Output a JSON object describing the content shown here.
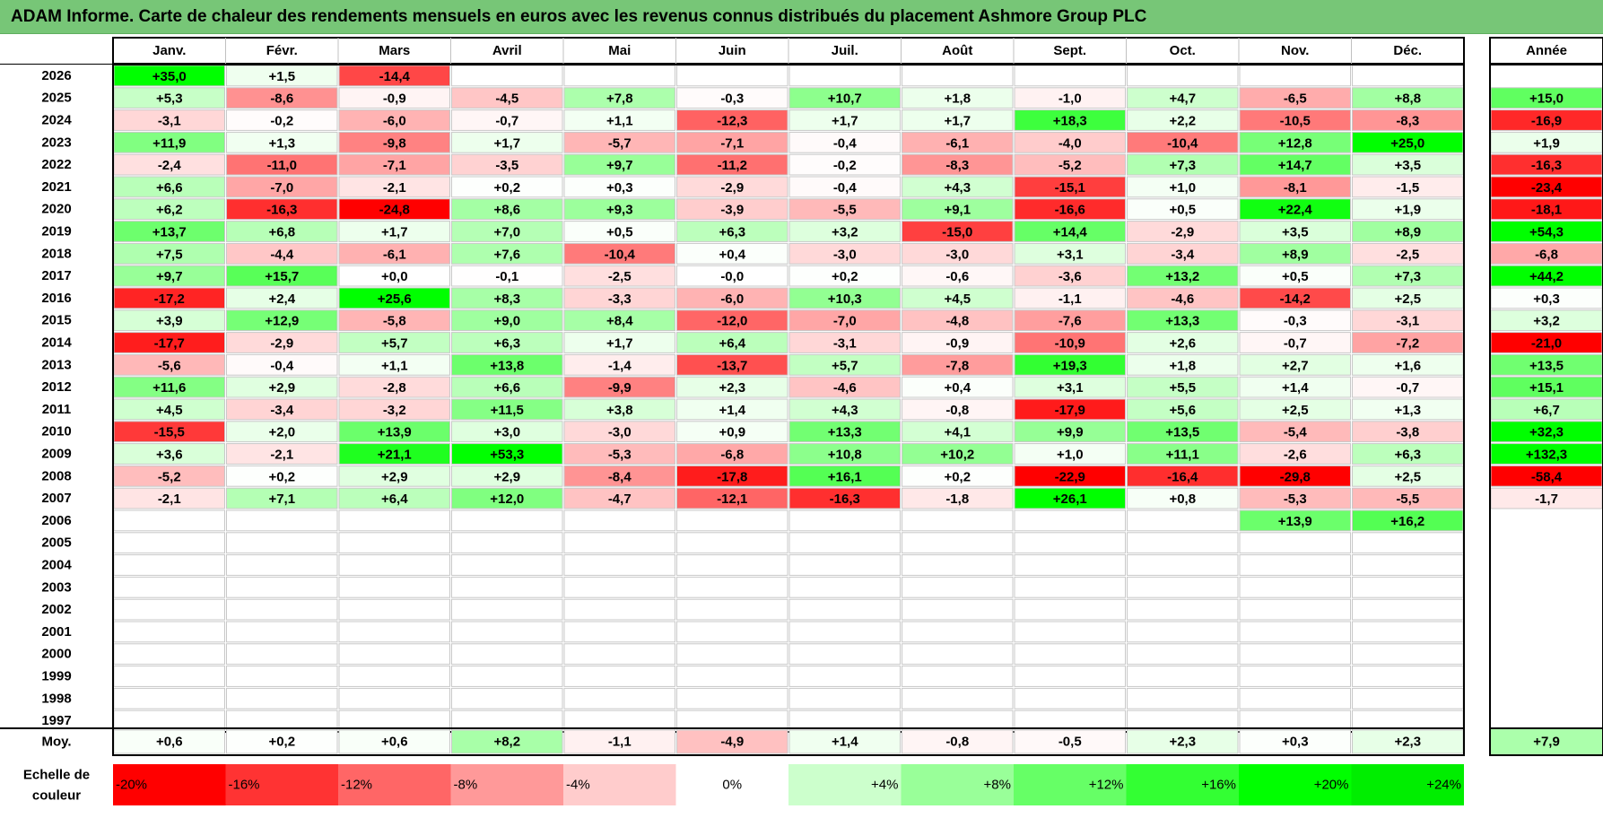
{
  "title": "ADAM Informe. Carte de chaleur des rendements mensuels en euros avec les revenus connus distribués du placement Ashmore Group PLC",
  "chart_data": {
    "type": "heatmap",
    "title": "ADAM Informe. Carte de chaleur des rendements mensuels en euros avec les revenus connus distribués du placement Ashmore Group PLC",
    "months": [
      "Janv.",
      "Févr.",
      "Mars",
      "Avril",
      "Mai",
      "Juin",
      "Juil.",
      "Août",
      "Sept.",
      "Oct.",
      "Nov.",
      "Déc."
    ],
    "year_header": "Année",
    "rows": [
      {
        "year": "2026",
        "values": [
          "+35,0",
          "+1,5",
          "-14,4",
          "",
          "",
          "",
          "",
          "",
          "",
          "",
          "",
          ""
        ],
        "annual": ""
      },
      {
        "year": "2025",
        "values": [
          "+5,3",
          "-8,6",
          "-0,9",
          "-4,5",
          "+7,8",
          "-0,3",
          "+10,7",
          "+1,8",
          "-1,0",
          "+4,7",
          "-6,5",
          "+8,8"
        ],
        "annual": "+15,0"
      },
      {
        "year": "2024",
        "values": [
          "-3,1",
          "-0,2",
          "-6,0",
          "-0,7",
          "+1,1",
          "-12,3",
          "+1,7",
          "+1,7",
          "+18,3",
          "+2,2",
          "-10,5",
          "-8,3"
        ],
        "annual": "-16,9"
      },
      {
        "year": "2023",
        "values": [
          "+11,9",
          "+1,3",
          "-9,8",
          "+1,7",
          "-5,7",
          "-7,1",
          "-0,4",
          "-6,1",
          "-4,0",
          "-10,4",
          "+12,8",
          "+25,0"
        ],
        "annual": "+1,9"
      },
      {
        "year": "2022",
        "values": [
          "-2,4",
          "-11,0",
          "-7,1",
          "-3,5",
          "+9,7",
          "-11,2",
          "-0,2",
          "-8,3",
          "-5,2",
          "+7,3",
          "+14,7",
          "+3,5"
        ],
        "annual": "-16,3"
      },
      {
        "year": "2021",
        "values": [
          "+6,6",
          "-7,0",
          "-2,1",
          "+0,2",
          "+0,3",
          "-2,9",
          "-0,4",
          "+4,3",
          "-15,1",
          "+1,0",
          "-8,1",
          "-1,5"
        ],
        "annual": "-23,4"
      },
      {
        "year": "2020",
        "values": [
          "+6,2",
          "-16,3",
          "-24,8",
          "+8,6",
          "+9,3",
          "-3,9",
          "-5,5",
          "+9,1",
          "-16,6",
          "+0,5",
          "+22,4",
          "+1,9"
        ],
        "annual": "-18,1"
      },
      {
        "year": "2019",
        "values": [
          "+13,7",
          "+6,8",
          "+1,7",
          "+7,0",
          "+0,5",
          "+6,3",
          "+3,2",
          "-15,0",
          "+14,4",
          "-2,9",
          "+3,5",
          "+8,9"
        ],
        "annual": "+54,3"
      },
      {
        "year": "2018",
        "values": [
          "+7,5",
          "-4,4",
          "-6,1",
          "+7,6",
          "-10,4",
          "+0,4",
          "-3,0",
          "-3,0",
          "+3,1",
          "-3,4",
          "+8,9",
          "-2,5"
        ],
        "annual": "-6,8"
      },
      {
        "year": "2017",
        "values": [
          "+9,7",
          "+15,7",
          "+0,0",
          "-0,1",
          "-2,5",
          "-0,0",
          "+0,2",
          "-0,6",
          "-3,6",
          "+13,2",
          "+0,5",
          "+7,3"
        ],
        "annual": "+44,2"
      },
      {
        "year": "2016",
        "values": [
          "-17,2",
          "+2,4",
          "+25,6",
          "+8,3",
          "-3,3",
          "-6,0",
          "+10,3",
          "+4,5",
          "-1,1",
          "-4,6",
          "-14,2",
          "+2,5"
        ],
        "annual": "+0,3"
      },
      {
        "year": "2015",
        "values": [
          "+3,9",
          "+12,9",
          "-5,8",
          "+9,0",
          "+8,4",
          "-12,0",
          "-7,0",
          "-4,8",
          "-7,6",
          "+13,3",
          "-0,3",
          "-3,1"
        ],
        "annual": "+3,2"
      },
      {
        "year": "2014",
        "values": [
          "-17,7",
          "-2,9",
          "+5,7",
          "+6,3",
          "+1,7",
          "+6,4",
          "-3,1",
          "-0,9",
          "-10,9",
          "+2,6",
          "-0,7",
          "-7,2"
        ],
        "annual": "-21,0"
      },
      {
        "year": "2013",
        "values": [
          "-5,6",
          "-0,4",
          "+1,1",
          "+13,8",
          "-1,4",
          "-13,7",
          "+5,7",
          "-7,8",
          "+19,3",
          "+1,8",
          "+2,7",
          "+1,6"
        ],
        "annual": "+13,5"
      },
      {
        "year": "2012",
        "values": [
          "+11,6",
          "+2,9",
          "-2,8",
          "+6,6",
          "-9,9",
          "+2,3",
          "-4,6",
          "+0,4",
          "+3,1",
          "+5,5",
          "+1,4",
          "-0,7"
        ],
        "annual": "+15,1"
      },
      {
        "year": "2011",
        "values": [
          "+4,5",
          "-3,4",
          "-3,2",
          "+11,5",
          "+3,8",
          "+1,4",
          "+4,3",
          "-0,8",
          "-17,9",
          "+5,6",
          "+2,5",
          "+1,3"
        ],
        "annual": "+6,7"
      },
      {
        "year": "2010",
        "values": [
          "-15,5",
          "+2,0",
          "+13,9",
          "+3,0",
          "-3,0",
          "+0,9",
          "+13,3",
          "+4,1",
          "+9,9",
          "+13,5",
          "-5,4",
          "-3,8"
        ],
        "annual": "+32,3"
      },
      {
        "year": "2009",
        "values": [
          "+3,6",
          "-2,1",
          "+21,1",
          "+53,3",
          "-5,3",
          "-6,8",
          "+10,8",
          "+10,2",
          "+1,0",
          "+11,1",
          "-2,6",
          "+6,3"
        ],
        "annual": "+132,3"
      },
      {
        "year": "2008",
        "values": [
          "-5,2",
          "+0,2",
          "+2,9",
          "+2,9",
          "-8,4",
          "-17,8",
          "+16,1",
          "+0,2",
          "-22,9",
          "-16,4",
          "-29,8",
          "+2,5"
        ],
        "annual": "-58,4"
      },
      {
        "year": "2007",
        "values": [
          "-2,1",
          "+7,1",
          "+6,4",
          "+12,0",
          "-4,7",
          "-12,1",
          "-16,3",
          "-1,8",
          "+26,1",
          "+0,8",
          "-5,3",
          "-5,5"
        ],
        "annual": "-1,7"
      },
      {
        "year": "2006",
        "values": [
          "",
          "",
          "",
          "",
          "",
          "",
          "",
          "",
          "",
          "",
          "+13,9",
          "+16,2"
        ],
        "annual": ""
      },
      {
        "year": "2005",
        "values": [
          "",
          "",
          "",
          "",
          "",
          "",
          "",
          "",
          "",
          "",
          "",
          ""
        ],
        "annual": ""
      },
      {
        "year": "2004",
        "values": [
          "",
          "",
          "",
          "",
          "",
          "",
          "",
          "",
          "",
          "",
          "",
          ""
        ],
        "annual": ""
      },
      {
        "year": "2003",
        "values": [
          "",
          "",
          "",
          "",
          "",
          "",
          "",
          "",
          "",
          "",
          "",
          ""
        ],
        "annual": ""
      },
      {
        "year": "2002",
        "values": [
          "",
          "",
          "",
          "",
          "",
          "",
          "",
          "",
          "",
          "",
          "",
          ""
        ],
        "annual": ""
      },
      {
        "year": "2001",
        "values": [
          "",
          "",
          "",
          "",
          "",
          "",
          "",
          "",
          "",
          "",
          "",
          ""
        ],
        "annual": ""
      },
      {
        "year": "2000",
        "values": [
          "",
          "",
          "",
          "",
          "",
          "",
          "",
          "",
          "",
          "",
          "",
          ""
        ],
        "annual": ""
      },
      {
        "year": "1999",
        "values": [
          "",
          "",
          "",
          "",
          "",
          "",
          "",
          "",
          "",
          "",
          "",
          ""
        ],
        "annual": ""
      },
      {
        "year": "1998",
        "values": [
          "",
          "",
          "",
          "",
          "",
          "",
          "",
          "",
          "",
          "",
          "",
          ""
        ],
        "annual": ""
      },
      {
        "year": "1997",
        "values": [
          "",
          "",
          "",
          "",
          "",
          "",
          "",
          "",
          "",
          "",
          "",
          ""
        ],
        "annual": ""
      }
    ],
    "average": {
      "label": "Moy.",
      "values": [
        "+0,6",
        "+0,2",
        "+0,6",
        "+8,2",
        "-1,1",
        "-4,9",
        "+1,4",
        "-0,8",
        "-0,5",
        "+2,3",
        "+0,3",
        "+2,3"
      ],
      "annual": "+7,9"
    },
    "scale": {
      "label_lines": [
        "Echelle de",
        "couleur"
      ],
      "steps": [
        {
          "label": "-20%",
          "color": "#ff0000"
        },
        {
          "label": "-16%",
          "color": "#ff3333"
        },
        {
          "label": "-12%",
          "color": "#ff6666"
        },
        {
          "label": "-8%",
          "color": "#ff9999"
        },
        {
          "label": "-4%",
          "color": "#ffcccc"
        },
        {
          "label": "0%",
          "color": "#ffffff"
        },
        {
          "label": "+4%",
          "color": "#ccffcc"
        },
        {
          "label": "+8%",
          "color": "#99ff99"
        },
        {
          "label": "+12%",
          "color": "#66ff66"
        },
        {
          "label": "+16%",
          "color": "#33ff33"
        },
        {
          "label": "+20%",
          "color": "#00ff00"
        },
        {
          "label": "+24%",
          "color": "#00ee00"
        }
      ]
    },
    "colors": {
      "title_bar": "#77c677",
      "positive": "#00ff00",
      "negative": "#ff0000",
      "neutral": "#ffffff",
      "grid": "#c0c0c0"
    }
  }
}
